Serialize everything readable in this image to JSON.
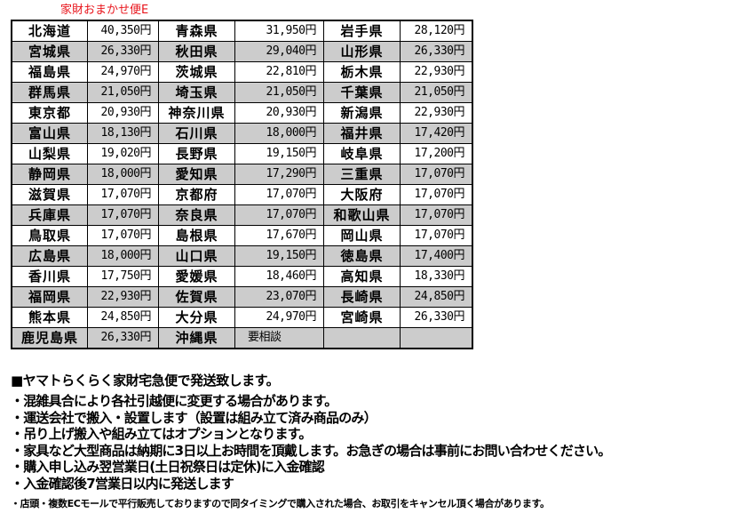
{
  "title": "家財おまかせ便E",
  "rows": [
    [
      [
        "北海道",
        "40,350円"
      ],
      [
        "青森県",
        "31,950円"
      ],
      [
        "岩手県",
        "28,120円"
      ]
    ],
    [
      [
        "宮城県",
        "26,330円"
      ],
      [
        "秋田県",
        "29,040円"
      ],
      [
        "山形県",
        "26,330円"
      ]
    ],
    [
      [
        "福島県",
        "24,970円"
      ],
      [
        "茨城県",
        "22,810円"
      ],
      [
        "栃木県",
        "22,930円"
      ]
    ],
    [
      [
        "群馬県",
        "21,050円"
      ],
      [
        "埼玉県",
        "21,050円"
      ],
      [
        "千葉県",
        "21,050円"
      ]
    ],
    [
      [
        "東京都",
        "20,930円"
      ],
      [
        "神奈川県",
        "20,930円"
      ],
      [
        "新潟県",
        "22,930円"
      ]
    ],
    [
      [
        "富山県",
        "18,130円"
      ],
      [
        "石川県",
        "18,000円"
      ],
      [
        "福井県",
        "17,420円"
      ]
    ],
    [
      [
        "山梨県",
        "19,020円"
      ],
      [
        "長野県",
        "19,150円"
      ],
      [
        "岐阜県",
        "17,200円"
      ]
    ],
    [
      [
        "静岡県",
        "18,000円"
      ],
      [
        "愛知県",
        "17,290円"
      ],
      [
        "三重県",
        "17,070円"
      ]
    ],
    [
      [
        "滋賀県",
        "17,070円"
      ],
      [
        "京都府",
        "17,070円"
      ],
      [
        "大阪府",
        "17,070円"
      ]
    ],
    [
      [
        "兵庫県",
        "17,070円"
      ],
      [
        "奈良県",
        "17,070円"
      ],
      [
        "和歌山県",
        "17,070円"
      ]
    ],
    [
      [
        "鳥取県",
        "17,070円"
      ],
      [
        "島根県",
        "17,670円"
      ],
      [
        "岡山県",
        "17,070円"
      ]
    ],
    [
      [
        "広島県",
        "18,000円"
      ],
      [
        "山口県",
        "19,150円"
      ],
      [
        "徳島県",
        "17,400円"
      ]
    ],
    [
      [
        "香川県",
        "17,750円"
      ],
      [
        "愛媛県",
        "18,460円"
      ],
      [
        "高知県",
        "18,330円"
      ]
    ],
    [
      [
        "福岡県",
        "22,930円"
      ],
      [
        "佐賀県",
        "23,070円"
      ],
      [
        "長崎県",
        "24,850円"
      ]
    ],
    [
      [
        "熊本県",
        "24,850円"
      ],
      [
        "大分県",
        "24,970円"
      ],
      [
        "宮崎県",
        "26,330円"
      ]
    ],
    [
      [
        "鹿児島県",
        "26,330円"
      ],
      [
        "沖縄県",
        "要相談"
      ],
      [
        "",
        ""
      ]
    ]
  ],
  "notes": {
    "heading": "■ヤマトらくらく家財宅急便で発送致します。",
    "lines": [
      "・混雑具合により各社引越便に変更する場合があります。",
      "・運送会社で搬入・設置します（設置は組み立て済み商品のみ）",
      "・吊り上げ搬入や組み立てはオプションとなります。",
      "・家具など大型商品は納期に3日以上お時間を頂戴します。お急ぎの場合は事前にお問い合わせください。",
      "・購入申し込み翌営業日(土日祝祭日は定休)に入金確認",
      "・入金確認後7営業日以内に発送します"
    ],
    "small": "・店頭・複数ECモールで平行販売しておりますので同タイミングで購入された場合、お取引をキャンセル頂く場合があります。"
  }
}
